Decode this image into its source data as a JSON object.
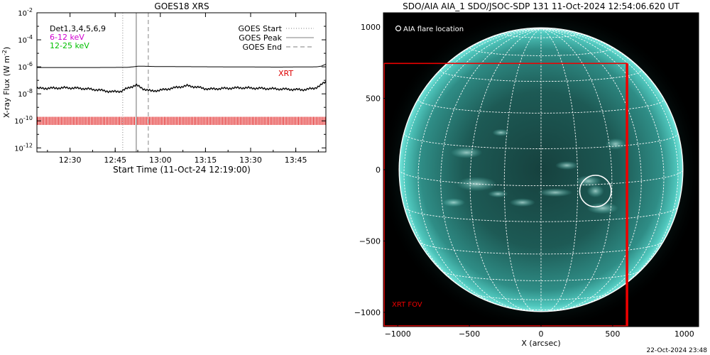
{
  "chart_data": [
    {
      "type": "line",
      "title": "GOES18 XRS",
      "xlabel": "Start Time (11-Oct-24 12:19:00)",
      "ylabel": "X-ray Flux (W m",
      "ylabel_sup": "-2",
      "ylabel_close": ")",
      "xlim_minutes": [
        0,
        96
      ],
      "ylim_log10": [
        -12.3,
        -2
      ],
      "xticks": [
        {
          "minute": 11,
          "label": "12:30"
        },
        {
          "minute": 26,
          "label": "12:45"
        },
        {
          "minute": 41,
          "label": "13:00"
        },
        {
          "minute": 56,
          "label": "13:15"
        },
        {
          "minute": 71,
          "label": "13:30"
        },
        {
          "minute": 86,
          "label": "13:45"
        }
      ],
      "yticks": [
        {
          "log10": -2,
          "base": "10",
          "exp": "-2"
        },
        {
          "log10": -4,
          "base": "10",
          "exp": "-4"
        },
        {
          "log10": -6,
          "base": "10",
          "exp": "-6"
        },
        {
          "log10": -8,
          "base": "10",
          "exp": "-8"
        },
        {
          "log10": -10,
          "base": "10",
          "exp": "-10"
        },
        {
          "log10": -12,
          "base": "10",
          "exp": "-12"
        }
      ],
      "text_legend": [
        {
          "label": "Det1,3,4,5,6,9",
          "color": "#000000"
        },
        {
          "label": "6-12 keV",
          "color": "#d000d0"
        },
        {
          "label": "12-25 keV",
          "color": "#00c000"
        }
      ],
      "legend": [
        {
          "label": "GOES Start",
          "style": "dotted",
          "color": "#999999"
        },
        {
          "label": "GOES Peak",
          "style": "solid",
          "color": "#999999"
        },
        {
          "label": "GOES End",
          "style": "dashed",
          "color": "#999999"
        }
      ],
      "markers": {
        "goes_start_min": 28.5,
        "goes_peak_min": 33,
        "goes_end_min": 37
      },
      "xrt_label": "XRT",
      "xrt_color": "#dd0000",
      "xrt_band_log10": [
        -10.3,
        -9.7
      ],
      "series": [
        {
          "color": "#000000",
          "points": [
            [
              0,
              -6.05
            ],
            [
              20,
              -6.05
            ],
            [
              30,
              -6.04
            ],
            [
              34,
              -5.95
            ],
            [
              40,
              -5.98
            ],
            [
              60,
              -6.0
            ],
            [
              80,
              -6.02
            ],
            [
              93,
              -6.0
            ],
            [
              94.5,
              -5.95
            ],
            [
              96,
              -5.8
            ]
          ]
        },
        {
          "color": "#000000",
          "points": [
            [
              0,
              -7.6
            ],
            [
              5,
              -7.58
            ],
            [
              10,
              -7.55
            ],
            [
              15,
              -7.6
            ],
            [
              20,
              -7.7
            ],
            [
              25,
              -7.85
            ],
            [
              28,
              -7.8
            ],
            [
              31,
              -7.5
            ],
            [
              33,
              -7.35
            ],
            [
              35,
              -7.6
            ],
            [
              38,
              -7.8
            ],
            [
              42,
              -7.7
            ],
            [
              47,
              -7.5
            ],
            [
              50,
              -7.4
            ],
            [
              53,
              -7.5
            ],
            [
              57,
              -7.65
            ],
            [
              62,
              -7.6
            ],
            [
              68,
              -7.55
            ],
            [
              75,
              -7.6
            ],
            [
              82,
              -7.65
            ],
            [
              88,
              -7.7
            ],
            [
              92,
              -7.6
            ],
            [
              94,
              -7.4
            ],
            [
              96,
              -7.1
            ]
          ]
        }
      ]
    },
    {
      "type": "image",
      "title": "SDO/AIA AIA_1 SDO/JSOC-SDP 131 11-Oct-2024 12:54:06.620 UT",
      "xlabel": "X (arcsec)",
      "xlim": [
        -1100,
        1100
      ],
      "ylim": [
        -1100,
        1100
      ],
      "xticks": [
        -1000,
        -500,
        0,
        500,
        1000
      ],
      "yticks": [
        1000,
        500,
        0,
        -500,
        -1000
      ],
      "xticklabels": [
        "−1000",
        "−500",
        "0",
        "500",
        "1000"
      ],
      "yticklabels": [
        "1000",
        "500",
        "0",
        "−500",
        "−1000"
      ],
      "solar_radius_arcsec": 990,
      "flare_location": [
        380,
        -150
      ],
      "flare_circle_radius_arcsec": 110,
      "flare_legend": "AIA flare location",
      "xrt_fov": {
        "x": [
          -1100,
          600
        ],
        "y": [
          -1100,
          745
        ],
        "label": "XRT FOV",
        "color": "#ee0000"
      }
    }
  ],
  "footer": {
    "timestamp": "22-Oct-2024 23:48"
  }
}
